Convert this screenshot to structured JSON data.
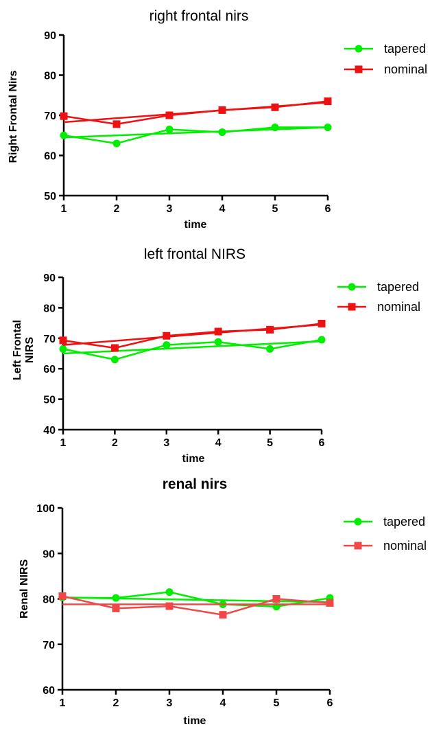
{
  "chart_data": [
    {
      "type": "line",
      "title": "right frontal nirs",
      "xlabel": "time",
      "ylabel": "Right Frontal Nirs",
      "x": [
        1,
        2,
        3,
        4,
        5,
        6
      ],
      "xticks": [
        "1",
        "2",
        "3",
        "4",
        "5",
        "6"
      ],
      "ylim": [
        50,
        90
      ],
      "yticks": [
        "50",
        "60",
        "70",
        "80",
        "90"
      ],
      "legend_position": "top-right",
      "series": [
        {
          "name": "tapered",
          "color": "#00ee00",
          "marker": "circle",
          "values": [
            65.0,
            63.0,
            66.5,
            65.8,
            67.0,
            67.0
          ],
          "trend": [
            64.5,
            67.0
          ]
        },
        {
          "name": "nominal",
          "color": "#ee1111",
          "marker": "square",
          "values": [
            69.8,
            67.8,
            70.0,
            71.3,
            72.0,
            73.5
          ],
          "trend": [
            68.3,
            73.2
          ]
        }
      ]
    },
    {
      "type": "line",
      "title": "left frontal NIRS",
      "xlabel": "time",
      "ylabel": "Left Frontal NIRS",
      "x": [
        1,
        2,
        3,
        4,
        5,
        6
      ],
      "xticks": [
        "1",
        "2",
        "3",
        "4",
        "5",
        "6"
      ],
      "ylim": [
        40,
        90
      ],
      "yticks": [
        "40",
        "50",
        "60",
        "70",
        "80",
        "90"
      ],
      "legend_position": "top-right",
      "series": [
        {
          "name": "tapered",
          "color": "#00ee00",
          "marker": "circle",
          "values": [
            66.5,
            63.0,
            67.8,
            68.8,
            66.5,
            69.5
          ],
          "trend": [
            65.0,
            69.0
          ]
        },
        {
          "name": "nominal",
          "color": "#ee1111",
          "marker": "square",
          "values": [
            69.3,
            66.8,
            70.8,
            72.2,
            72.8,
            74.8
          ],
          "trend": [
            67.8,
            74.5
          ]
        }
      ]
    },
    {
      "type": "line",
      "title": "renal nirs",
      "xlabel": "time",
      "ylabel": "Renal NIRS",
      "x": [
        1,
        2,
        3,
        4,
        5,
        6
      ],
      "xticks": [
        "1",
        "2",
        "3",
        "4",
        "5",
        "6"
      ],
      "ylim": [
        60,
        100
      ],
      "yticks": [
        "60",
        "70",
        "80",
        "90",
        "100"
      ],
      "legend_position": "top-right",
      "series": [
        {
          "name": "tapered",
          "color": "#00ee00",
          "marker": "circle",
          "values": [
            80.3,
            80.2,
            81.5,
            78.8,
            78.3,
            80.2
          ],
          "trend": [
            80.3,
            79.3
          ]
        },
        {
          "name": "nominal",
          "color": "#f04848",
          "marker": "square",
          "values": [
            80.6,
            77.9,
            78.4,
            76.5,
            80.0,
            79.1
          ],
          "trend": [
            78.8,
            78.8
          ]
        }
      ]
    }
  ]
}
